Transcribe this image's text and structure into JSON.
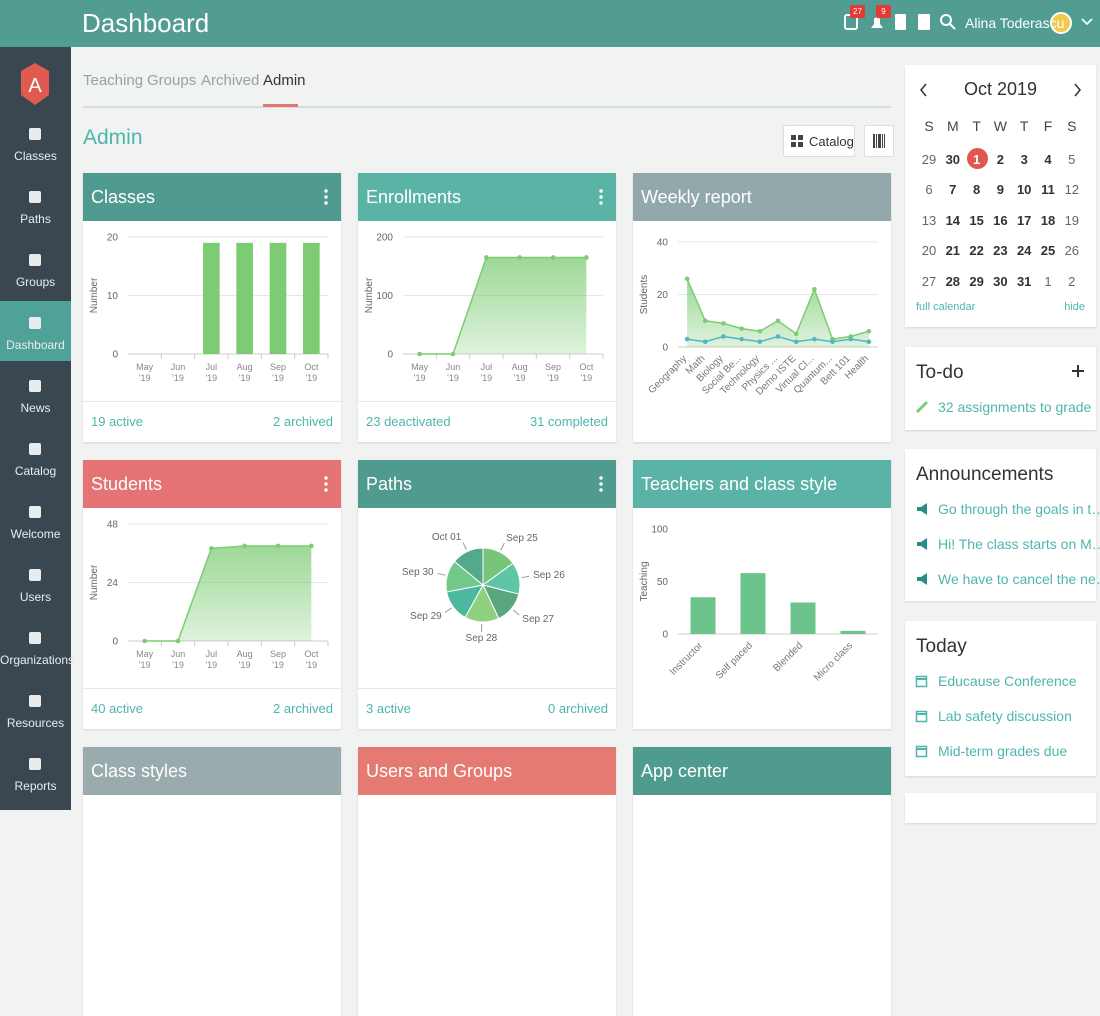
{
  "header": {
    "title": "Dashboard",
    "badges": [
      27,
      9
    ],
    "user": "Alina Toderascu"
  },
  "sidebar": {
    "logo": "A",
    "items": [
      "Classes",
      "Paths",
      "Groups",
      "Dashboard",
      "News",
      "Catalog",
      "Welcome",
      "Users",
      "Organizations",
      "Resources",
      "Reports"
    ],
    "active": 3
  },
  "tabs": {
    "items": [
      "Teaching",
      "Groups",
      "Archived",
      "Admin"
    ],
    "active": 3
  },
  "page_title": "Admin",
  "buttons": [
    "Catalog"
  ],
  "cards": [
    {
      "title": "Classes",
      "header_color": "#4f9b8f",
      "footer_left": "19 active",
      "footer_right": "2 archived",
      "chart": {
        "type": "bar",
        "y_label": "Number",
        "categories": [
          "May '19",
          "Jun '19",
          "Jul '19",
          "Aug '19",
          "Sep '19",
          "Oct '19"
        ],
        "values": [
          0,
          0,
          19,
          19,
          19,
          19
        ],
        "color": "#7dcc74",
        "ylim": [
          0,
          20
        ],
        "yticks": [
          0,
          10,
          20
        ],
        "grid": true
      }
    },
    {
      "title": "Enrollments",
      "header_color": "#5bb3a6",
      "footer_left": "23 deactivated",
      "footer_right": "31 completed",
      "chart": {
        "type": "area",
        "y_label": "Number",
        "categories": [
          "May '19",
          "Jun '19",
          "Jul '19",
          "Aug '19",
          "Sep '19",
          "Oct '19"
        ],
        "values": [
          0,
          0,
          165,
          165,
          165,
          165
        ],
        "color": "#7dcc74",
        "ylim": [
          0,
          200
        ],
        "yticks": [
          0,
          100,
          200
        ],
        "grid": true
      }
    },
    {
      "title": "Weekly report",
      "header_color": "#93a8aa",
      "chart": {
        "type": "area",
        "y_label": "Students",
        "categories": [
          "Geography",
          "Math",
          "Biology",
          "Social Be...",
          "Technology",
          "Physics ...",
          "Demo ISTE",
          "Virtual Cl...",
          "Quantum...",
          "Bett 101",
          "Health"
        ],
        "series": [
          {
            "color": "#7dcc74",
            "values": [
              26,
              10,
              9,
              7,
              6,
              10,
              5,
              22,
              3,
              4,
              6
            ]
          },
          {
            "color": "#4fb8c4",
            "values": [
              3,
              2,
              4,
              3,
              2,
              4,
              2,
              3,
              2,
              3,
              2
            ]
          }
        ],
        "ylim": [
          0,
          40
        ],
        "yticks": [
          0,
          20,
          40
        ],
        "grid": true
      }
    },
    {
      "title": "Students",
      "header_color": "#e57373",
      "footer_left": "40 active",
      "footer_right": "2 archived",
      "chart": {
        "type": "area",
        "y_label": "Number",
        "categories": [
          "May '19",
          "Jun '19",
          "Jul '19",
          "Aug '19",
          "Sep '19",
          "Oct '19"
        ],
        "values": [
          0,
          0,
          38,
          39,
          39,
          39
        ],
        "color": "#7dcc74",
        "ylim": [
          0,
          48
        ],
        "yticks": [
          0,
          24,
          48
        ],
        "grid": true
      }
    },
    {
      "title": "Paths",
      "header_color": "#4f9b8f",
      "footer_left": "3 active",
      "footer_right": "0 archived",
      "chart": {
        "type": "pie",
        "categories": [
          "Sep 25",
          "Sep 26",
          "Sep 27",
          "Sep 28",
          "Sep 29",
          "Sep 30",
          "Oct 01"
        ],
        "values": [
          15,
          14,
          14,
          15,
          14,
          14,
          14
        ],
        "colors": [
          "#78c47a",
          "#5ec6a6",
          "#5aa67e",
          "#8fd07e",
          "#4cb8a0",
          "#72c98a",
          "#52a98c"
        ]
      }
    },
    {
      "title": "Teachers and class style",
      "header_color": "#5ab3a6",
      "chart": {
        "type": "bar",
        "y_label": "Teaching",
        "categories": [
          "Instructor",
          "Self paced",
          "Blended",
          "Micro class"
        ],
        "values": [
          35,
          58,
          30,
          3
        ],
        "color": "#6cc48c",
        "ylim": [
          0,
          100
        ],
        "yticks": [
          0,
          50,
          100
        ],
        "grid": false
      }
    },
    {
      "title": "Class styles",
      "header_color": "#9aabad"
    },
    {
      "title": "Users and Groups",
      "header_color": "#e57a72"
    },
    {
      "title": "App center",
      "header_color": "#4f9b8f"
    }
  ],
  "calendar": {
    "month": "Oct 2019",
    "weekdays": [
      "S",
      "M",
      "T",
      "W",
      "T",
      "F",
      "S"
    ],
    "weeks": [
      [
        29,
        30,
        1,
        2,
        3,
        4,
        5
      ],
      [
        6,
        7,
        8,
        9,
        10,
        11,
        12
      ],
      [
        13,
        14,
        15,
        16,
        17,
        18,
        19
      ],
      [
        20,
        21,
        22,
        23,
        24,
        25,
        26
      ],
      [
        27,
        28,
        29,
        30,
        31,
        1,
        2
      ]
    ],
    "full_link": "full calendar",
    "hide_link": "hide"
  },
  "todo": {
    "title": "To-do",
    "items": [
      "32 assignments to grade"
    ]
  },
  "announcements": {
    "title": "Announcements",
    "items": [
      "Go through the goals in t…",
      "Hi! The class starts on M…",
      "We have to cancel the ne…"
    ]
  },
  "today": {
    "title": "Today",
    "items": [
      "Educause Conference",
      "Lab safety discussion",
      "Mid-term grades due"
    ]
  }
}
